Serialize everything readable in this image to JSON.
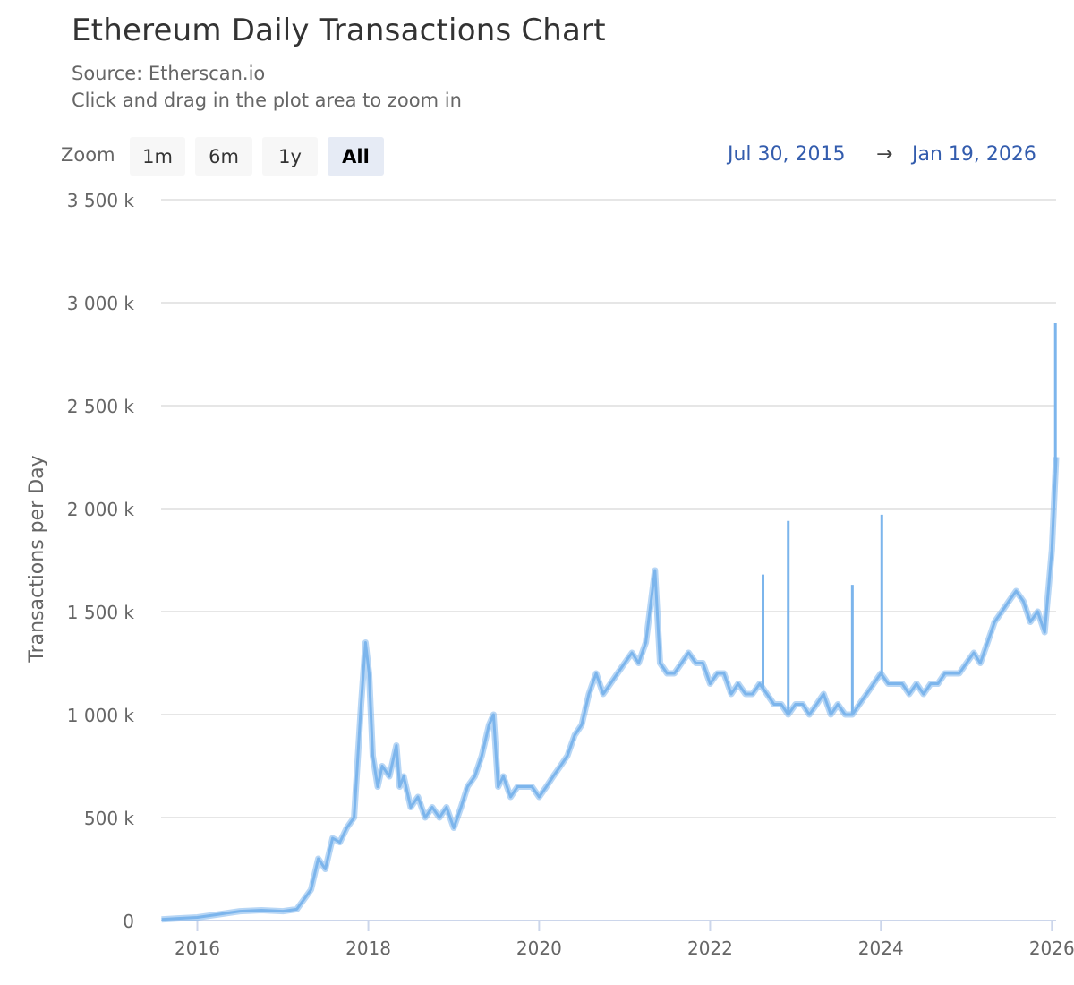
{
  "header": {
    "title": "Ethereum Daily Transactions Chart",
    "source": "Source: Etherscan.io",
    "hint": "Click and drag in the plot area to zoom in"
  },
  "zoom": {
    "label": "Zoom",
    "buttons": [
      "1m",
      "6m",
      "1y",
      "All"
    ],
    "selected": "All"
  },
  "range": {
    "from": "Jul 30, 2015",
    "arrow": "→",
    "to": "Jan 19, 2026"
  },
  "colors": {
    "series": "#7cb5ec",
    "grid": "#e6e6e6",
    "range_text": "#335cad"
  },
  "chart_data": {
    "type": "line",
    "title": "Ethereum Daily Transactions Chart",
    "subtitle": "Source: Etherscan.io",
    "ylabel": "Transactions per Day",
    "xlabel": "",
    "ylim": [
      0,
      3500000
    ],
    "xlim": [
      "2015-07-30",
      "2026-01-19"
    ],
    "y_ticks": [
      {
        "value": 0,
        "label": "0"
      },
      {
        "value": 500000,
        "label": "500 k"
      },
      {
        "value": 1000000,
        "label": "1 000 k"
      },
      {
        "value": 1500000,
        "label": "1 500 k"
      },
      {
        "value": 2000000,
        "label": "2 000 k"
      },
      {
        "value": 2500000,
        "label": "2 500 k"
      },
      {
        "value": 3000000,
        "label": "3 000 k"
      },
      {
        "value": 3500000,
        "label": "3 500 k"
      }
    ],
    "x_ticks": [
      "2016",
      "2018",
      "2020",
      "2022",
      "2024",
      "2026"
    ],
    "grid": true,
    "legend": "none",
    "series": [
      {
        "x": [
          "2015-08-01",
          "2015-10-01",
          "2016-01-01",
          "2016-04-01",
          "2016-07-01",
          "2016-10-01",
          "2017-01-01",
          "2017-03-01",
          "2017-05-01",
          "2017-06-01",
          "2017-07-01",
          "2017-08-01",
          "2017-09-01",
          "2017-10-01",
          "2017-11-01",
          "2017-12-01",
          "2017-12-20",
          "2018-01-04",
          "2018-01-20",
          "2018-02-10",
          "2018-03-01",
          "2018-04-01",
          "2018-05-01",
          "2018-05-15",
          "2018-06-01",
          "2018-07-01",
          "2018-08-01",
          "2018-09-01",
          "2018-10-01",
          "2018-11-01",
          "2018-12-01",
          "2019-01-01",
          "2019-02-01",
          "2019-03-01",
          "2019-04-01",
          "2019-05-01",
          "2019-06-01",
          "2019-06-20",
          "2019-07-10",
          "2019-08-01",
          "2019-09-01",
          "2019-10-01",
          "2019-11-01",
          "2019-12-01",
          "2020-01-01",
          "2020-02-01",
          "2020-03-01",
          "2020-04-01",
          "2020-05-01",
          "2020-06-01",
          "2020-07-01",
          "2020-08-01",
          "2020-09-01",
          "2020-10-01",
          "2020-11-01",
          "2020-12-01",
          "2021-01-01",
          "2021-02-01",
          "2021-03-01",
          "2021-04-01",
          "2021-05-10",
          "2021-06-01",
          "2021-07-01",
          "2021-08-01",
          "2021-09-01",
          "2021-10-01",
          "2021-11-01",
          "2021-12-01",
          "2022-01-01",
          "2022-02-01",
          "2022-03-01",
          "2022-04-01",
          "2022-05-01",
          "2022-06-01",
          "2022-07-01",
          "2022-08-01",
          "2022-09-01",
          "2022-10-01",
          "2022-11-01",
          "2022-12-01",
          "2023-01-01",
          "2023-02-01",
          "2023-03-01",
          "2023-04-01",
          "2023-05-01",
          "2023-06-01",
          "2023-07-01",
          "2023-08-01",
          "2023-09-01",
          "2023-10-01",
          "2023-11-01",
          "2023-12-01",
          "2024-01-01",
          "2024-02-01",
          "2024-03-01",
          "2024-04-01",
          "2024-05-01",
          "2024-06-01",
          "2024-07-01",
          "2024-08-01",
          "2024-09-01",
          "2024-10-01",
          "2024-11-01",
          "2024-12-01",
          "2025-01-01",
          "2025-02-01",
          "2025-03-01",
          "2025-04-01",
          "2025-05-01",
          "2025-06-01",
          "2025-07-01",
          "2025-08-01",
          "2025-09-01",
          "2025-10-01",
          "2025-11-01",
          "2025-12-01",
          "2026-01-01",
          "2026-01-19"
        ],
        "values": [
          5000,
          10000,
          15000,
          30000,
          45000,
          50000,
          45000,
          55000,
          150000,
          300000,
          250000,
          400000,
          380000,
          450000,
          500000,
          1050000,
          1350000,
          1200000,
          800000,
          650000,
          750000,
          700000,
          850000,
          650000,
          700000,
          550000,
          600000,
          500000,
          550000,
          500000,
          550000,
          450000,
          550000,
          650000,
          700000,
          800000,
          950000,
          1000000,
          650000,
          700000,
          600000,
          650000,
          650000,
          650000,
          600000,
          650000,
          700000,
          750000,
          800000,
          900000,
          950000,
          1100000,
          1200000,
          1100000,
          1150000,
          1200000,
          1250000,
          1300000,
          1250000,
          1350000,
          1700000,
          1250000,
          1200000,
          1200000,
          1250000,
          1300000,
          1250000,
          1250000,
          1150000,
          1200000,
          1200000,
          1100000,
          1150000,
          1100000,
          1100000,
          1150000,
          1100000,
          1050000,
          1050000,
          1000000,
          1050000,
          1050000,
          1000000,
          1050000,
          1100000,
          1000000,
          1050000,
          1000000,
          1000000,
          1050000,
          1100000,
          1150000,
          1200000,
          1150000,
          1150000,
          1150000,
          1100000,
          1150000,
          1100000,
          1150000,
          1150000,
          1200000,
          1200000,
          1200000,
          1250000,
          1300000,
          1250000,
          1350000,
          1450000,
          1500000,
          1550000,
          1600000,
          1550000,
          1450000,
          1500000,
          1400000,
          1800000,
          2250000
        ],
        "spikes": [
          {
            "x": "2022-08-15",
            "value": 1680000
          },
          {
            "x": "2022-12-01",
            "value": 1940000
          },
          {
            "x": "2023-09-01",
            "value": 1630000
          },
          {
            "x": "2024-01-05",
            "value": 1970000
          },
          {
            "x": "2026-01-16",
            "value": 2900000
          }
        ]
      }
    ]
  }
}
